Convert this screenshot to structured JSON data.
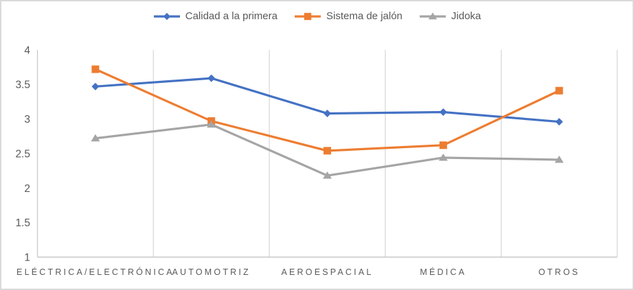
{
  "chart_data": {
    "type": "line",
    "title": "",
    "xlabel": "",
    "ylabel": "",
    "categories": [
      "ELÉCTRICA/ELECTRÓNICA",
      "AUTOMOTRIZ",
      "AEROESPACIAL",
      "MÉDICA",
      "OTROS"
    ],
    "series": [
      {
        "name": "Calidad a la primera",
        "marker": "diamond",
        "color": "#4472C4",
        "values": [
          3.47,
          3.59,
          3.08,
          3.1,
          2.96
        ]
      },
      {
        "name": "Sistema de jalón",
        "marker": "square",
        "color": "#ED7D31",
        "values": [
          3.72,
          2.97,
          2.54,
          2.62,
          3.41
        ]
      },
      {
        "name": "Jidoka",
        "marker": "triangle",
        "color": "#A5A5A5",
        "values": [
          2.72,
          2.92,
          2.18,
          2.44,
          2.41
        ]
      }
    ],
    "y_ticks": [
      4,
      3.5,
      3,
      2.5,
      2,
      1.5,
      1
    ],
    "ylim": [
      1,
      4
    ],
    "grid": "vertical-only",
    "legend_position": "top",
    "axis_text_color": "#595959",
    "gridline_color": "#d9d9d9",
    "axis_line_color": "#c9c9c9",
    "background_color": "#ffffff",
    "border_color": "#d9d9d9"
  }
}
